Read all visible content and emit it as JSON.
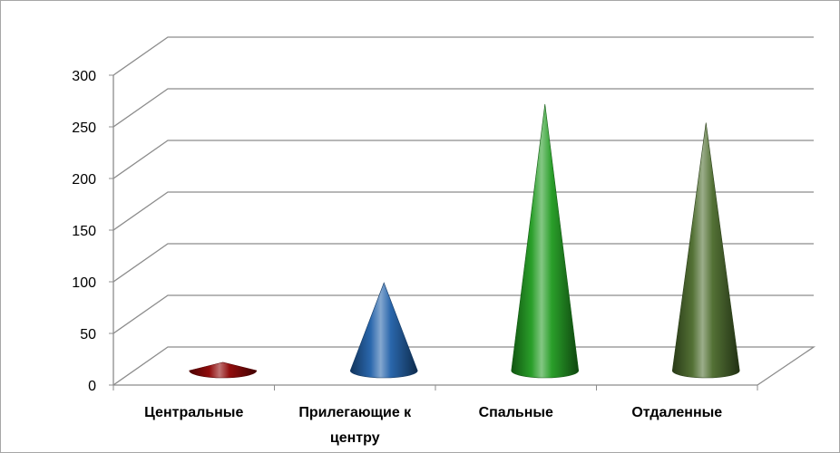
{
  "chart_data": {
    "type": "bar",
    "subtype": "3d-cone",
    "categories": [
      "Центральные",
      "Прилегающие к центру",
      "Спальные",
      "Отдаленные"
    ],
    "category_label_lines": [
      [
        "Центральные"
      ],
      [
        "Прилегающие к",
        "центру"
      ],
      [
        "Спальные"
      ],
      [
        "Отдаленные"
      ]
    ],
    "values": [
      8,
      85,
      258,
      240
    ],
    "colors": [
      "#8b0000",
      "#1f5fa8",
      "#1f9a1f",
      "#4a6a2a"
    ],
    "ylim": [
      0,
      300
    ],
    "yticks": [
      "0",
      "50",
      "100",
      "150",
      "200",
      "250",
      "300"
    ],
    "title": "",
    "xlabel": "",
    "ylabel": "",
    "grid": true,
    "legend": "none"
  }
}
